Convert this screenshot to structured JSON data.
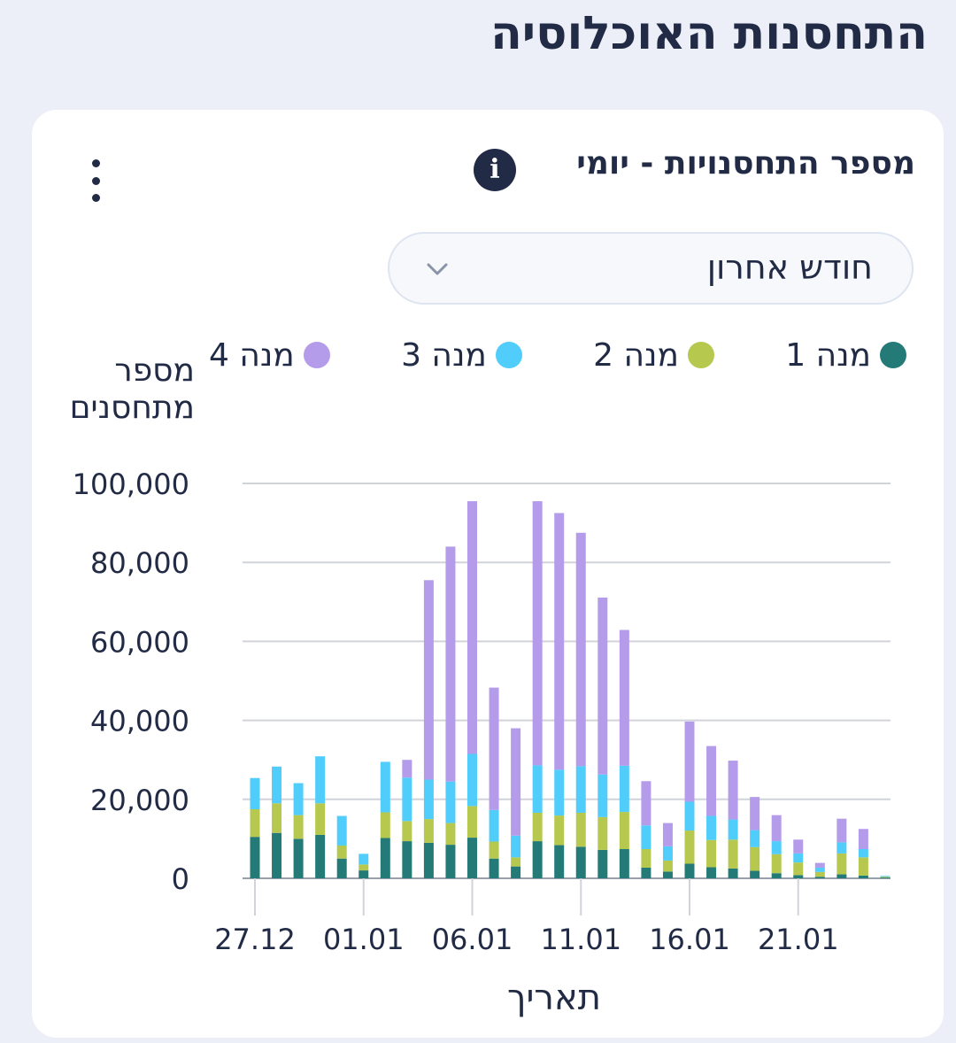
{
  "page": {
    "title": "התחסנות האוכלוסיה"
  },
  "card": {
    "title": "מספר התחסנויות - יומי",
    "info_icon": "info-icon",
    "menu_icon": "kebab-menu-icon",
    "range_select": {
      "selected": "חודש אחרון",
      "icon": "chevron-down-icon"
    }
  },
  "colors": {
    "dose1": "#247a77",
    "dose2": "#b6c94e",
    "dose3": "#50cdfa",
    "dose4": "#b49ceb",
    "grid": "#d0d3da",
    "axis_text": "#222b45"
  },
  "chart_data": {
    "type": "bar",
    "stacked": true,
    "ylabel": "מספר מתחסנים",
    "xlabel": "תאריך",
    "ylim": [
      0,
      100000
    ],
    "yticks": [
      "0",
      "20,000",
      "40,000",
      "60,000",
      "80,000",
      "100,000"
    ],
    "categories": [
      "27.12",
      "28.12",
      "29.12",
      "30.12",
      "31.12",
      "01.01",
      "02.01",
      "03.01",
      "04.01",
      "05.01",
      "06.01",
      "07.01",
      "08.01",
      "09.01",
      "10.01",
      "11.01",
      "12.01",
      "13.01",
      "14.01",
      "15.01",
      "16.01",
      "17.01",
      "18.01",
      "19.01",
      "20.01",
      "21.01",
      "22.01",
      "23.01",
      "24.01",
      "25.01"
    ],
    "xtick_labels": [
      "27.12",
      "01.01",
      "06.01",
      "11.01",
      "16.01",
      "21.01"
    ],
    "legend": {
      "position": "top"
    },
    "grid": true,
    "series": [
      {
        "name": "מנה 1",
        "color": "#247a77",
        "values": [
          10500,
          11500,
          10000,
          11000,
          5000,
          2000,
          10200,
          9400,
          9000,
          8500,
          10300,
          5000,
          3000,
          9400,
          8400,
          8000,
          7200,
          7400,
          2700,
          1700,
          3700,
          2800,
          2500,
          1900,
          1300,
          800,
          400,
          1000,
          700,
          200
        ]
      },
      {
        "name": "מנה 2",
        "color": "#b6c94e",
        "values": [
          7000,
          7500,
          6000,
          8000,
          3300,
          1500,
          6500,
          5100,
          6000,
          5500,
          8000,
          4300,
          2300,
          7200,
          7500,
          8600,
          8300,
          9400,
          4700,
          2800,
          8400,
          6900,
          7300,
          6000,
          4800,
          3200,
          1200,
          5300,
          4600,
          200
        ]
      },
      {
        "name": "מנה 3",
        "color": "#50cdfa",
        "values": [
          7900,
          9300,
          8100,
          11900,
          7500,
          2700,
          12800,
          11000,
          10000,
          10500,
          13200,
          8000,
          5500,
          12000,
          11600,
          11800,
          10800,
          11700,
          6000,
          3600,
          7300,
          6100,
          5100,
          4300,
          3300,
          2300,
          1100,
          2800,
          2100,
          200
        ]
      },
      {
        "name": "מנה 4",
        "color": "#b49ceb",
        "values": [
          0,
          0,
          0,
          0,
          0,
          0,
          0,
          4500,
          50500,
          59500,
          64000,
          31000,
          27200,
          66900,
          65000,
          59100,
          44800,
          34400,
          11200,
          5900,
          20300,
          17700,
          14900,
          8400,
          6600,
          3500,
          1200,
          6000,
          5100,
          0
        ]
      }
    ]
  }
}
